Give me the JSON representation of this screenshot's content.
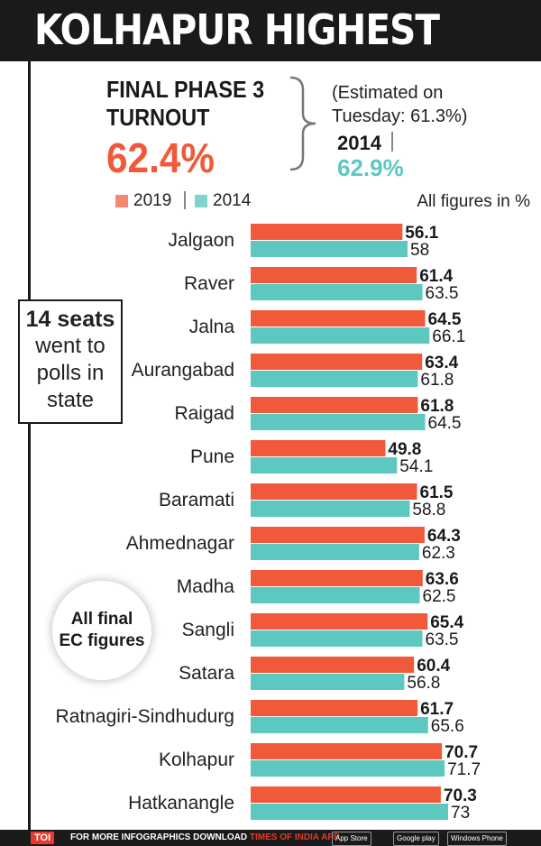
{
  "header": {
    "title": "KOLHAPUR HIGHEST"
  },
  "phase": {
    "title_line1": "FINAL PHASE 3",
    "title_line2": "TURNOUT",
    "value": "62.4%",
    "estimate_line1": "(Estimated on",
    "estimate_line2": "Tuesday: 61.3%)",
    "prev_label": "2014",
    "prev_value": "62.9%"
  },
  "legend": {
    "label_2019": "2019",
    "label_2014": "2014",
    "units": "All figures in %"
  },
  "seats_note": {
    "line1": "14 seats",
    "line2": "went to",
    "line3": "polls in",
    "line4": "state"
  },
  "ec_note": {
    "line1": "All final",
    "line2": "EC figures"
  },
  "colors": {
    "series_2019": "#f05a3a",
    "series_2014": "#5cc8c0",
    "accent": "#f05a3a",
    "header_bg": "#1a1a1a"
  },
  "footer": {
    "brand_mark": "TOI",
    "text": "FOR MORE  INFOGRAPHICS DOWNLOAD ",
    "brand": "TIMES OF INDIA  APP",
    "store1": "App Store",
    "store2": "Google play",
    "store3": "Windows Phone"
  },
  "chart_data": {
    "type": "bar",
    "orientation": "horizontal",
    "categories": [
      "Jalgaon",
      "Raver",
      "Jalna",
      "Aurangabad",
      "Raigad",
      "Pune",
      "Baramati",
      "Ahmednagar",
      "Madha",
      "Sangli",
      "Satara",
      "Ratnagiri-Sindhudurg",
      "Kolhapur",
      "Hatkanangle"
    ],
    "series": [
      {
        "name": "2019",
        "values": [
          56.1,
          61.4,
          64.5,
          63.4,
          61.8,
          49.8,
          61.5,
          64.3,
          63.6,
          65.4,
          60.4,
          61.7,
          70.7,
          70.3
        ]
      },
      {
        "name": "2014",
        "values": [
          58,
          63.5,
          66.1,
          61.8,
          64.5,
          54.1,
          58.8,
          62.3,
          62.5,
          63.5,
          56.8,
          65.6,
          71.7,
          73
        ]
      }
    ],
    "value_labels": [
      [
        "56.1",
        "61.4",
        "64.5",
        "63.4",
        "61.8",
        "49.8",
        "61.5",
        "64.3",
        "63.6",
        "65.4",
        "60.4",
        "61.7",
        "70.7",
        "70.3"
      ],
      [
        "58",
        "63.5",
        "66.1",
        "61.8",
        "64.5",
        "54.1",
        "58.8",
        "62.3",
        "62.5",
        "63.5",
        "56.8",
        "65.6",
        "71.7",
        "73"
      ]
    ],
    "title": "KOLHAPUR HIGHEST",
    "xlabel": "",
    "ylabel": "",
    "xlim": [
      0,
      73
    ],
    "legend": "top-left",
    "grid": false
  }
}
